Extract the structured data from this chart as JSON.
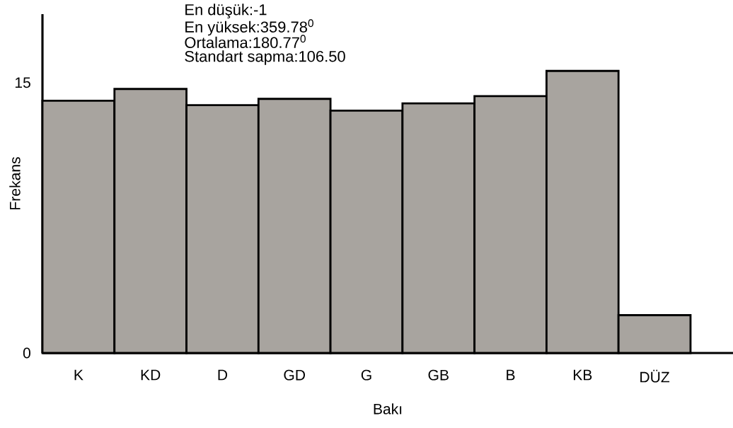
{
  "chart_data": {
    "type": "bar",
    "categories": [
      "K",
      "KD",
      "D",
      "GD",
      "G",
      "GB",
      "B",
      "KB",
      "DÜZ"
    ],
    "values": [
      14.0,
      14.65,
      13.75,
      14.1,
      13.45,
      13.85,
      14.25,
      15.65,
      2.1
    ],
    "color": "#a8a49f",
    "ylim": [
      0,
      18.8
    ],
    "yticks": [
      0,
      15
    ],
    "xlabel": "Bakı",
    "ylabel": "Frekans",
    "annotations": [
      "En düşük:-1",
      "En yüksek:359.78$^{0}$",
      "Ortalama:180.77$^{0}$",
      "Standart sapma:106.50"
    ],
    "grid": false
  }
}
